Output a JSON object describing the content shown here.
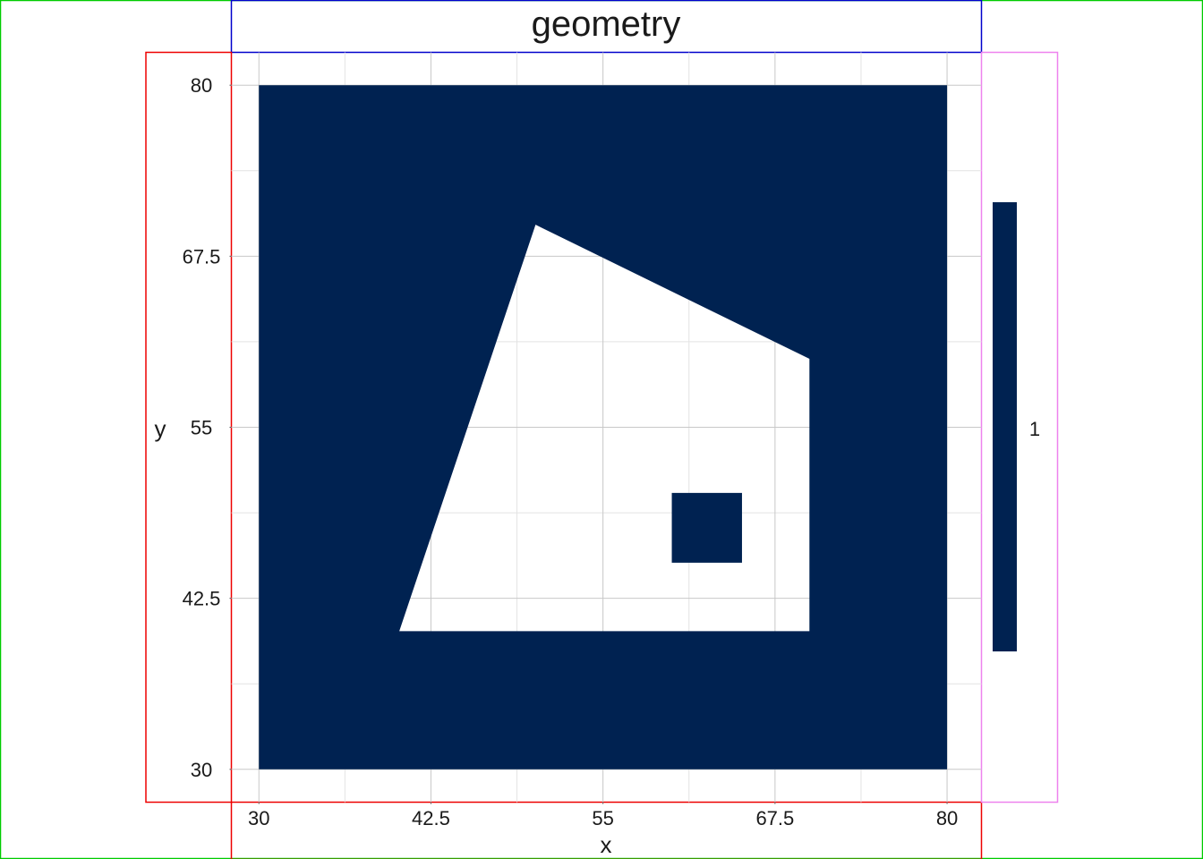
{
  "chart_data": {
    "type": "polygon",
    "title": "geometry",
    "xlabel": "x",
    "ylabel": "y",
    "xlim": [
      28,
      82.5
    ],
    "ylim": [
      27.6,
      82.4
    ],
    "x_ticks": [
      30,
      42.5,
      55,
      67.5,
      80
    ],
    "x_tick_labels": [
      "30",
      "42.5",
      "55",
      "67.5",
      "80"
    ],
    "y_ticks": [
      30,
      42.5,
      55,
      67.5,
      80
    ],
    "y_tick_labels": [
      "30",
      "42.5",
      "55",
      "67.5",
      "80"
    ],
    "grid": true,
    "fill_color": "#002251",
    "grid_color": "#c8c8c8",
    "polygon": {
      "outer": [
        [
          30,
          30
        ],
        [
          80,
          30
        ],
        [
          80,
          80
        ],
        [
          30,
          80
        ]
      ],
      "holes": [
        [
          [
            40.2,
            40.1
          ],
          [
            70,
            40.1
          ],
          [
            70,
            60
          ],
          [
            50.1,
            69.8
          ]
        ]
      ]
    },
    "islands": [
      [
        [
          60,
          45.1
        ],
        [
          65.1,
          45.1
        ],
        [
          65.1,
          50.2
        ],
        [
          60,
          50.2
        ]
      ]
    ],
    "legend": {
      "position": "right",
      "label": "1",
      "color": "#002251"
    }
  }
}
